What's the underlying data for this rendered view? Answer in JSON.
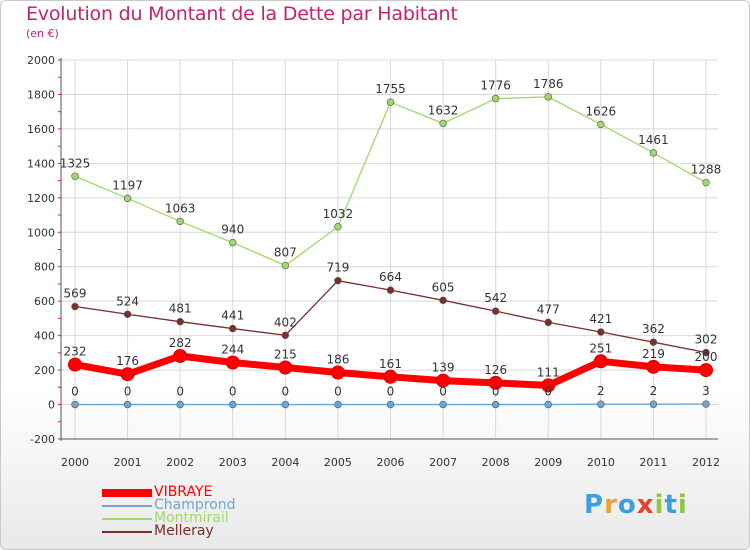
{
  "header": {
    "title": "Evolution du Montant de la Dette par Habitant",
    "subtitle": "(en €)"
  },
  "colors": {
    "title": "#c0256b",
    "grid": "#d8d8d8",
    "vibraye": "#ff0000",
    "champrond": "#6fa6d1",
    "montmirail": "#9fd96a",
    "melleray": "#7a2e2e"
  },
  "logo": {
    "text": "Proxiti",
    "letters": [
      "P",
      "r",
      "o",
      "x",
      "i",
      "t",
      "i"
    ],
    "colors": [
      "#3aa0dc",
      "#e8a230",
      "#3aa0dc",
      "#e8412f",
      "#8ec63f",
      "#3aa0dc",
      "#8ec63f"
    ]
  },
  "chart_data": {
    "type": "line",
    "title": "Evolution du Montant de la Dette par Habitant",
    "subtitle": "(en €)",
    "x": [
      "2000",
      "2001",
      "2002",
      "2003",
      "2004",
      "2005",
      "2006",
      "2007",
      "2008",
      "2009",
      "2010",
      "2011",
      "2012"
    ],
    "ylim": [
      -200,
      2000
    ],
    "yticks": [
      "-200",
      "0",
      "200",
      "400",
      "600",
      "800",
      "1000",
      "1200",
      "1400",
      "1600",
      "1800",
      "2000"
    ],
    "grid": true,
    "legend_position": "bottom-left",
    "series": [
      {
        "name": "VIBRAYE",
        "color": "#ff0000",
        "emphasis": "thick",
        "values": [
          232,
          176,
          282,
          244,
          215,
          186,
          161,
          139,
          126,
          111,
          251,
          219,
          200
        ],
        "labels": [
          "232",
          "176",
          "282",
          "244",
          "215",
          "186",
          "161",
          "139",
          "126",
          "111",
          "251",
          "219",
          "200"
        ]
      },
      {
        "name": "Champrond",
        "color": "#6fa6d1",
        "emphasis": "thin",
        "values": [
          0,
          0,
          0,
          0,
          0,
          0,
          0,
          0,
          0,
          0,
          2,
          2,
          3
        ],
        "labels": [
          "0",
          "0",
          "0",
          "0",
          "0",
          "0",
          "0",
          "0",
          "0",
          "0",
          "2",
          "2",
          "3"
        ]
      },
      {
        "name": "Montmirail",
        "color": "#9fd96a",
        "emphasis": "thin",
        "values": [
          1325,
          1197,
          1063,
          940,
          807,
          1032,
          1755,
          1632,
          1776,
          1786,
          1626,
          1461,
          1288
        ],
        "labels": [
          "1325",
          "1197",
          "1063",
          "940",
          "807",
          "1032",
          "1755",
          "1632",
          "1776",
          "1786",
          "1626",
          "1461",
          "1288"
        ]
      },
      {
        "name": "Melleray",
        "color": "#7a2e2e",
        "emphasis": "thin",
        "values": [
          569,
          524,
          481,
          441,
          402,
          719,
          664,
          605,
          542,
          477,
          421,
          362,
          302
        ],
        "labels": [
          "569",
          "524",
          "481",
          "441",
          "402",
          "719",
          "664",
          "605",
          "542",
          "477",
          "421",
          "362",
          "302"
        ]
      }
    ]
  }
}
